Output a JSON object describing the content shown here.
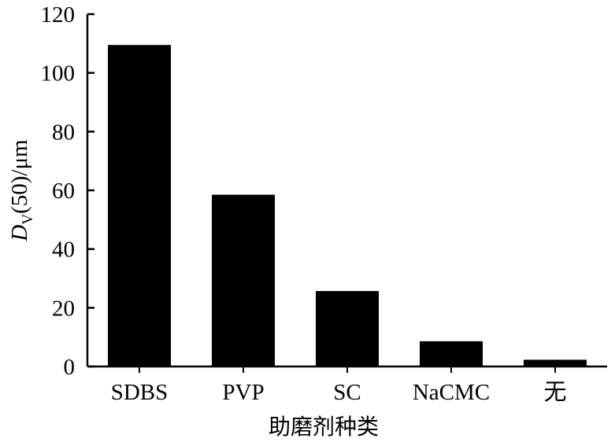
{
  "chart_data": {
    "type": "bar",
    "categories": [
      "SDBS",
      "PVP",
      "SC",
      "NaCMC",
      "无"
    ],
    "values": [
      109.5,
      58.5,
      25.7,
      8.6,
      2.3
    ],
    "xlabel": "助磨剂种类",
    "ylabel": {
      "main": "D",
      "subscript": "V",
      "rest": "(50)/μm"
    },
    "ylim": [
      0,
      120
    ],
    "yticks": [
      0,
      20,
      40,
      60,
      80,
      100,
      120
    ],
    "grid": false,
    "legend": "none",
    "bar_color": "#000000"
  }
}
